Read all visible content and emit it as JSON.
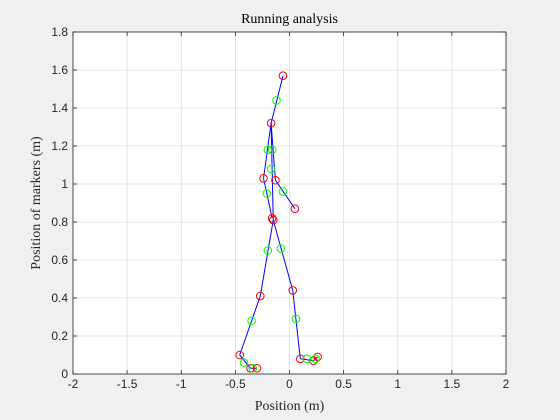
{
  "chart_data": {
    "type": "scatter",
    "title": "Running analysis",
    "xlabel": "Position (m)",
    "ylabel": "Position of markers (m)",
    "xlim": [
      -2,
      2
    ],
    "ylim": [
      0,
      1.8
    ],
    "xticks": [
      -2,
      -1.5,
      -1,
      -0.5,
      0,
      0.5,
      1,
      1.5,
      2
    ],
    "yticks": [
      0,
      0.2,
      0.4,
      0.6,
      0.8,
      1,
      1.2,
      1.4,
      1.6,
      1.8
    ],
    "xtick_labels": [
      "-2",
      "-1.5",
      "-1",
      "-0.5",
      "0",
      "0.5",
      "1",
      "1.5",
      "2"
    ],
    "ytick_labels": [
      "0",
      "0.2",
      "0.4",
      "0.6",
      "0.8",
      "1",
      "1.2",
      "1.4",
      "1.6",
      "1.8"
    ],
    "grid": true,
    "colors": {
      "plot_bg": "#ffffff",
      "figure_bg": "#f0f0f0",
      "grid": "#dcdcdc",
      "axis": "#262626",
      "segments": "#0000ff",
      "joint_markers": "#ff0000",
      "midpoint_markers": "#00ff00"
    },
    "series": [
      {
        "marker": "circle",
        "color": "#ff0000",
        "points": [
          [
            -0.06,
            1.57
          ],
          [
            -0.17,
            1.32
          ],
          [
            -0.24,
            1.03
          ],
          [
            -0.13,
            1.02
          ],
          [
            0.05,
            0.87
          ],
          [
            -0.16,
            0.82
          ],
          [
            -0.15,
            0.81
          ],
          [
            -0.27,
            0.41
          ],
          [
            0.03,
            0.44
          ],
          [
            -0.46,
            0.1
          ],
          [
            -0.36,
            0.03
          ],
          [
            -0.3,
            0.03
          ],
          [
            0.1,
            0.08
          ],
          [
            0.22,
            0.07
          ],
          [
            0.26,
            0.09
          ]
        ]
      },
      {
        "marker": "circle",
        "color": "#00ff00",
        "points": [
          [
            -0.12,
            1.44
          ],
          [
            -0.2,
            1.18
          ],
          [
            -0.16,
            1.18
          ],
          [
            -0.17,
            1.08
          ],
          [
            -0.21,
            0.95
          ],
          [
            -0.06,
            0.96
          ],
          [
            -0.2,
            0.65
          ],
          [
            -0.08,
            0.66
          ],
          [
            -0.35,
            0.28
          ],
          [
            0.06,
            0.29
          ],
          [
            -0.42,
            0.06
          ],
          [
            -0.34,
            0.03
          ],
          [
            0.16,
            0.08
          ],
          [
            0.24,
            0.08
          ]
        ]
      }
    ],
    "segments": [
      [
        [
          -0.06,
          1.57
        ],
        [
          -0.17,
          1.32
        ]
      ],
      [
        [
          -0.17,
          1.32
        ],
        [
          -0.24,
          1.03
        ]
      ],
      [
        [
          -0.24,
          1.03
        ],
        [
          -0.16,
          0.82
        ]
      ],
      [
        [
          -0.17,
          1.32
        ],
        [
          -0.13,
          1.02
        ]
      ],
      [
        [
          -0.13,
          1.02
        ],
        [
          0.05,
          0.87
        ]
      ],
      [
        [
          -0.17,
          1.32
        ],
        [
          -0.15,
          0.81
        ]
      ],
      [
        [
          -0.15,
          0.81
        ],
        [
          -0.27,
          0.41
        ]
      ],
      [
        [
          -0.27,
          0.41
        ],
        [
          -0.46,
          0.1
        ]
      ],
      [
        [
          -0.46,
          0.1
        ],
        [
          -0.36,
          0.03
        ]
      ],
      [
        [
          -0.36,
          0.03
        ],
        [
          -0.3,
          0.03
        ]
      ],
      [
        [
          -0.15,
          0.81
        ],
        [
          0.03,
          0.44
        ]
      ],
      [
        [
          0.03,
          0.44
        ],
        [
          0.1,
          0.08
        ]
      ],
      [
        [
          0.1,
          0.08
        ],
        [
          0.22,
          0.07
        ]
      ],
      [
        [
          0.22,
          0.07
        ],
        [
          0.26,
          0.09
        ]
      ]
    ]
  }
}
